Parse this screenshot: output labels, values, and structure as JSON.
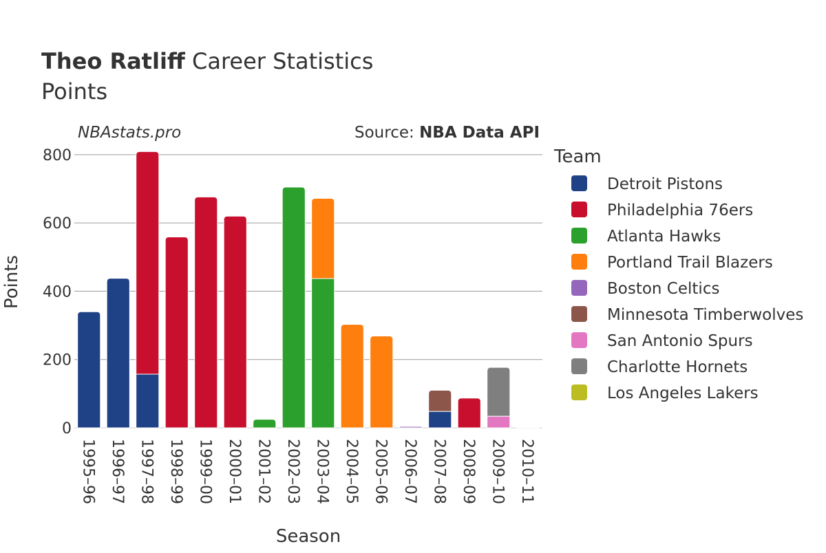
{
  "header": {
    "title_bold": "Theo Ratliff",
    "title_rest": " Career Statistics",
    "subtitle": "Points",
    "watermark": "NBAstats.pro",
    "source_prefix": "Source: ",
    "source_name": "NBA Data API"
  },
  "colors": {
    "Detroit Pistons": "#1f4185",
    "Philadelphia 76ers": "#c8102e",
    "Atlanta Hawks": "#2ca02c",
    "Portland Trail Blazers": "#ff7f0e",
    "Boston Celtics": "#9467bd",
    "Minnesota Timberwolves": "#8c564b",
    "San Antonio Spurs": "#e377c2",
    "Charlotte Hornets": "#7f7f7f",
    "Los Angeles Lakers": "#bcbd22"
  },
  "chart_data": {
    "type": "bar",
    "stacked": true,
    "xlabel": "Season",
    "ylabel": "Points",
    "ylim": [
      0,
      840
    ],
    "yticks": [
      0,
      200,
      400,
      600,
      800
    ],
    "grid": true,
    "legend_title": "Team",
    "legend_position": "right",
    "categories": [
      "1995–96",
      "1996–97",
      "1997–98",
      "1998–99",
      "1999–00",
      "2000–01",
      "2001–02",
      "2002–03",
      "2003–04",
      "2004–05",
      "2005–06",
      "2006–07",
      "2007–08",
      "2008–09",
      "2009–10",
      "2010–11"
    ],
    "series": [
      {
        "name": "Detroit Pistons",
        "values": [
          340,
          438,
          157,
          0,
          0,
          0,
          0,
          0,
          0,
          0,
          0,
          0,
          48,
          0,
          0,
          0
        ]
      },
      {
        "name": "Philadelphia 76ers",
        "values": [
          0,
          0,
          652,
          559,
          676,
          620,
          0,
          0,
          0,
          0,
          0,
          0,
          0,
          87,
          0,
          0
        ]
      },
      {
        "name": "Atlanta Hawks",
        "values": [
          0,
          0,
          0,
          0,
          0,
          0,
          25,
          705,
          437,
          0,
          0,
          0,
          0,
          0,
          0,
          0
        ]
      },
      {
        "name": "Portland Trail Blazers",
        "values": [
          0,
          0,
          0,
          0,
          0,
          0,
          0,
          0,
          235,
          303,
          269,
          0,
          0,
          0,
          0,
          0
        ]
      },
      {
        "name": "Boston Celtics",
        "values": [
          0,
          0,
          0,
          0,
          0,
          0,
          0,
          0,
          0,
          0,
          0,
          4,
          0,
          0,
          0,
          0
        ]
      },
      {
        "name": "Minnesota Timberwolves",
        "values": [
          0,
          0,
          0,
          0,
          0,
          0,
          0,
          0,
          0,
          0,
          0,
          0,
          62,
          0,
          0,
          0
        ]
      },
      {
        "name": "San Antonio Spurs",
        "values": [
          0,
          0,
          0,
          0,
          0,
          0,
          0,
          0,
          0,
          0,
          0,
          0,
          0,
          0,
          34,
          0
        ]
      },
      {
        "name": "Charlotte Hornets",
        "values": [
          0,
          0,
          0,
          0,
          0,
          0,
          0,
          0,
          0,
          0,
          0,
          0,
          0,
          0,
          143,
          0
        ]
      },
      {
        "name": "Los Angeles Lakers",
        "values": [
          0,
          0,
          0,
          0,
          0,
          0,
          0,
          0,
          0,
          0,
          0,
          0,
          0,
          0,
          0,
          2
        ]
      }
    ]
  }
}
